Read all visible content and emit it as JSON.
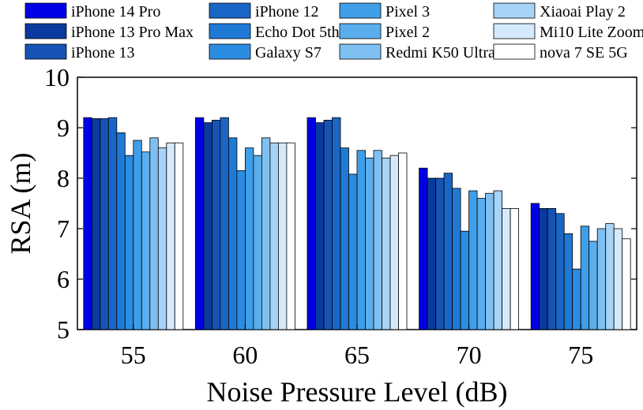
{
  "chart_data": {
    "type": "bar",
    "xlabel": "Noise Pressure Level (dB)",
    "ylabel": "RSA (m)",
    "ylim": [
      5,
      10
    ],
    "yticks": [
      5,
      6,
      7,
      8,
      9,
      10
    ],
    "categories": [
      "55",
      "60",
      "65",
      "70",
      "75"
    ],
    "legend_position": "top",
    "series": [
      {
        "name": "iPhone 14 Pro",
        "color": "#0000e6",
        "values": [
          9.2,
          9.2,
          9.2,
          8.2,
          7.5
        ]
      },
      {
        "name": "iPhone 13 Pro Max",
        "color": "#0b3a9e",
        "values": [
          9.18,
          9.1,
          9.1,
          8.0,
          7.4
        ]
      },
      {
        "name": "iPhone 13",
        "color": "#1554b4",
        "values": [
          9.18,
          9.15,
          9.15,
          8.0,
          7.4
        ]
      },
      {
        "name": "iPhone 12",
        "color": "#1a66c6",
        "values": [
          9.2,
          9.2,
          9.2,
          8.1,
          7.3
        ]
      },
      {
        "name": "Echo Dot 5th",
        "color": "#1f7ad6",
        "values": [
          8.9,
          8.8,
          8.6,
          7.8,
          6.9
        ]
      },
      {
        "name": "Galaxy S7",
        "color": "#2b8de2",
        "values": [
          8.45,
          8.15,
          8.08,
          6.95,
          6.2
        ]
      },
      {
        "name": "Pixel 3",
        "color": "#3f9ee8",
        "values": [
          8.75,
          8.6,
          8.55,
          7.75,
          7.05
        ]
      },
      {
        "name": "Pixel 2",
        "color": "#5aaeee",
        "values": [
          8.52,
          8.45,
          8.4,
          7.6,
          6.75
        ]
      },
      {
        "name": "Redmi K50 Ultra",
        "color": "#7fc0f2",
        "values": [
          8.8,
          8.8,
          8.55,
          7.7,
          7.0
        ]
      },
      {
        "name": "Xiaoai Play 2",
        "color": "#a6d3f6",
        "values": [
          8.6,
          8.7,
          8.4,
          7.75,
          7.1
        ]
      },
      {
        "name": "Mi10 Lite Zoom",
        "color": "#d4e9fb",
        "values": [
          8.7,
          8.7,
          8.45,
          7.4,
          7.0
        ]
      },
      {
        "name": "nova 7 SE 5G",
        "color": "#ffffff",
        "values": [
          8.7,
          8.7,
          8.5,
          7.4,
          6.8
        ]
      }
    ]
  }
}
